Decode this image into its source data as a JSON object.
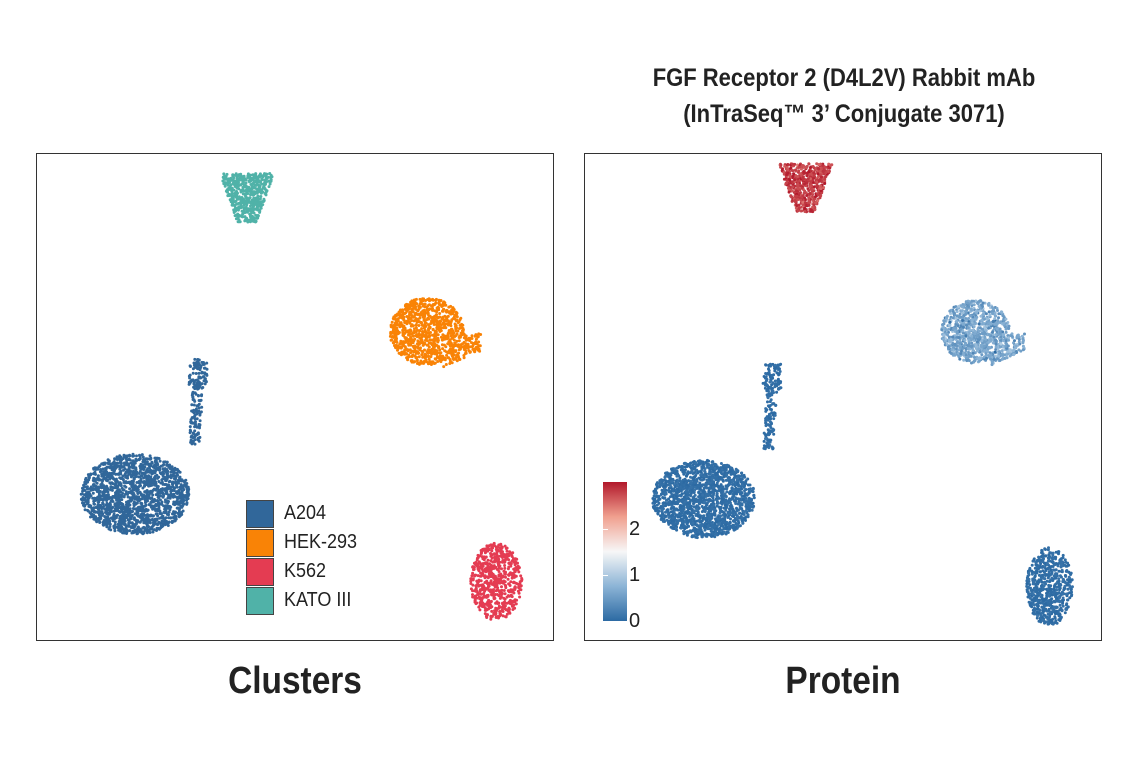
{
  "figure": {
    "title_line1": "FGF Receptor 2 (D4L2V) Rabbit mAb",
    "title_line2": "(InTraSeq™ 3’ Conjugate 3071)"
  },
  "chart_data": [
    {
      "type": "scatter",
      "name": "Clusters",
      "caption": "Clusters",
      "title": "",
      "xlabel": "",
      "ylabel": "",
      "grid": false,
      "legend_position": "bottom-right",
      "legend": [
        {
          "label": "A204",
          "color": "#31679a"
        },
        {
          "label": "HEK-293",
          "color": "#f98306"
        },
        {
          "label": "K562",
          "color": "#e43c52"
        },
        {
          "label": "KATO III",
          "color": "#50b2a8"
        }
      ],
      "clusters": [
        {
          "label": "KATO III",
          "color": "#50b2a8",
          "shape": "tri_down",
          "center": [
            0.41,
            0.91
          ],
          "size": [
            0.105,
            0.1
          ],
          "points": 520
        },
        {
          "label": "HEK-293",
          "color": "#f98306",
          "shape": "triangle",
          "center": [
            0.77,
            0.63
          ],
          "size": [
            0.18,
            0.155
          ],
          "points": 950
        },
        {
          "label": "A204",
          "color": "#31679a",
          "shape": "stripe",
          "center": [
            0.31,
            0.49
          ],
          "size": [
            0.04,
            0.175
          ],
          "points": 200
        },
        {
          "label": "A204",
          "color": "#31679a",
          "shape": "ellipse",
          "center": [
            0.19,
            0.3
          ],
          "size": [
            0.21,
            0.165
          ],
          "points": 1650
        },
        {
          "label": "K562",
          "color": "#e43c52",
          "shape": "ellipse",
          "center": [
            0.89,
            0.12
          ],
          "size": [
            0.1,
            0.16
          ],
          "points": 620
        }
      ]
    },
    {
      "type": "scatter",
      "name": "Protein",
      "caption": "Protein",
      "title": "FGF Receptor 2 (D4L2V) Rabbit mAb (InTraSeq™ 3’ Conjugate 3071)",
      "xlabel": "",
      "ylabel": "",
      "grid": false,
      "colorbar": {
        "position": "bottom-left",
        "min": 0,
        "max": 2.8,
        "ticks": [
          "0",
          "1",
          "2"
        ],
        "tick_values": [
          0,
          1,
          2
        ],
        "colors": [
          "#2c6aa3",
          "#8cb4d6",
          "#f7f7f7",
          "#f0a08f",
          "#b2182b"
        ]
      },
      "clusters": [
        {
          "label": "KATO III",
          "shape": "tri_down",
          "center": [
            0.43,
            0.93
          ],
          "size": [
            0.105,
            0.1
          ],
          "points": 520,
          "expression_mean": 2.6,
          "expression_sd": 0.12
        },
        {
          "label": "HEK-293",
          "shape": "triangle",
          "center": [
            0.77,
            0.63
          ],
          "size": [
            0.165,
            0.145
          ],
          "points": 950,
          "expression_mean": 0.55,
          "expression_sd": 0.16
        },
        {
          "label": "A204",
          "shape": "stripe",
          "center": [
            0.36,
            0.48
          ],
          "size": [
            0.04,
            0.175
          ],
          "points": 200,
          "expression_mean": 0.03,
          "expression_sd": 0.03
        },
        {
          "label": "A204",
          "shape": "ellipse",
          "center": [
            0.23,
            0.29
          ],
          "size": [
            0.2,
            0.16
          ],
          "points": 1650,
          "expression_mean": 0.03,
          "expression_sd": 0.03
        },
        {
          "label": "K562",
          "shape": "ellipse",
          "center": [
            0.9,
            0.11
          ],
          "size": [
            0.09,
            0.16
          ],
          "points": 600,
          "expression_mean": 0.03,
          "expression_sd": 0.03
        }
      ]
    }
  ]
}
